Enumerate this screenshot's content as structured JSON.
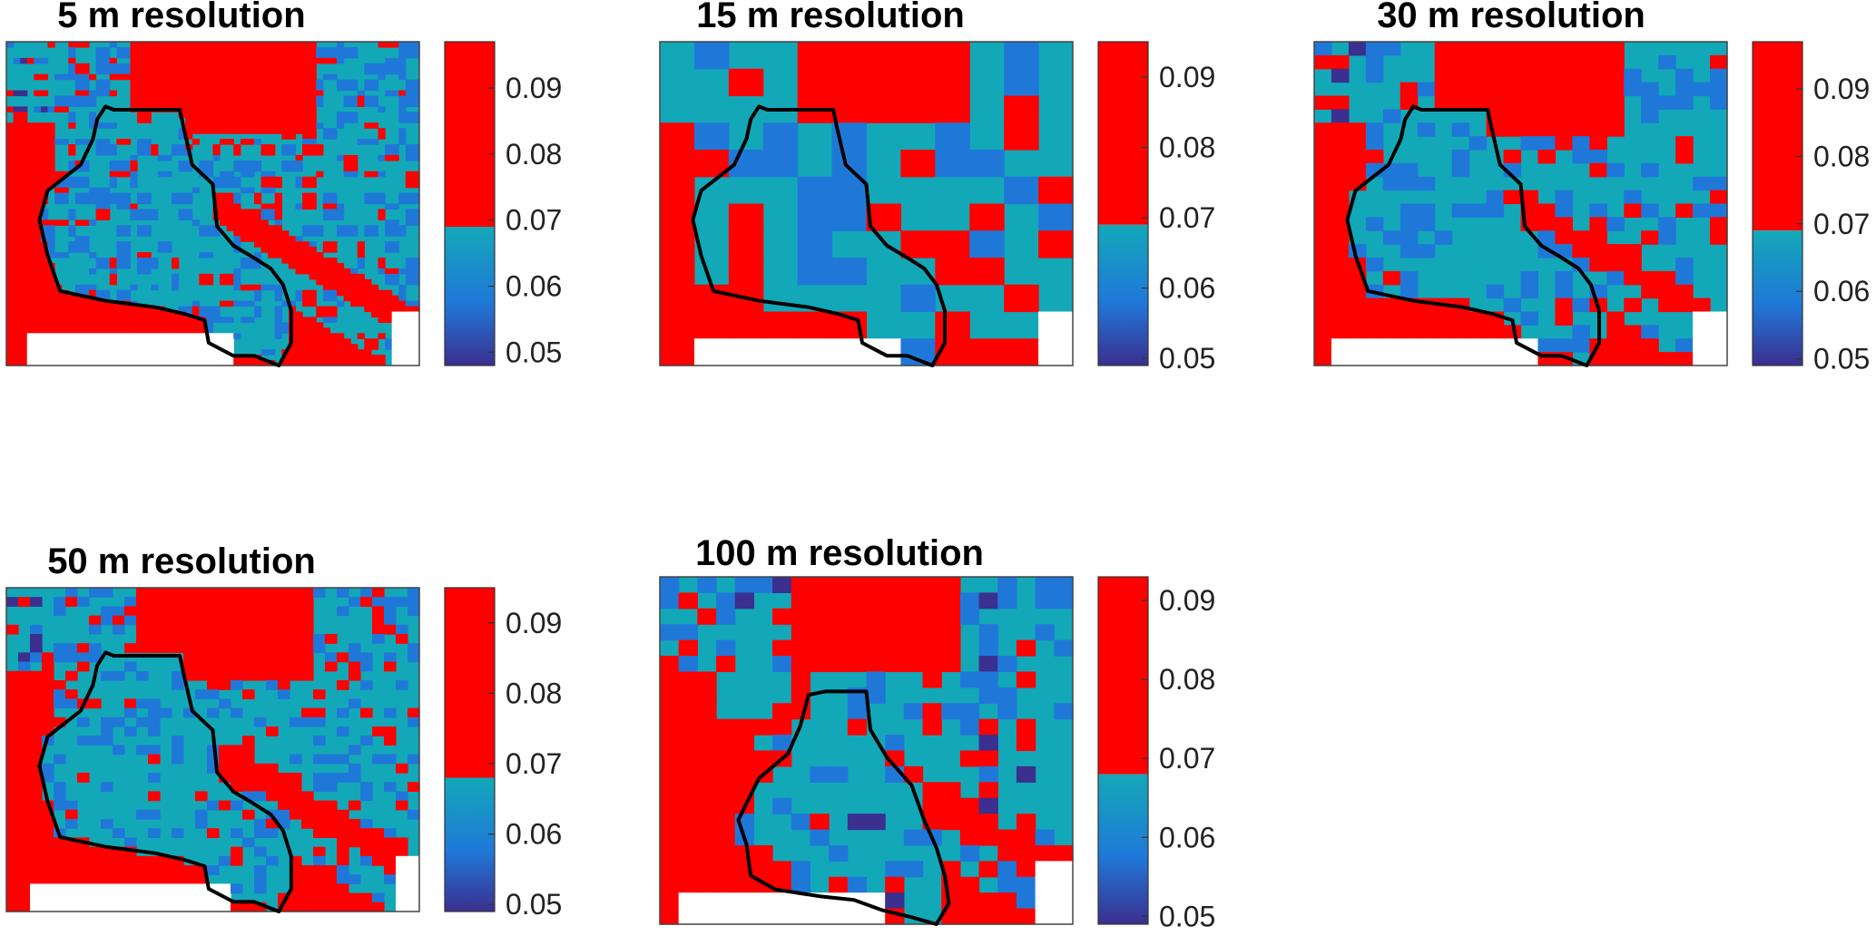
{
  "colors": {
    "high": "#ff0000",
    "mid": "#13a8b8",
    "blue": "#1f78d8",
    "low": "#3b2f8f",
    "outline": "#000000",
    "nodata": "#ffffff"
  },
  "chart_data": [
    {
      "type": "heatmap",
      "title": "5 m resolution",
      "colorbar": {
        "ticks": [
          "0.05",
          "0.06",
          "0.07",
          "0.08",
          "0.09"
        ],
        "range": [
          0.048,
          0.097
        ],
        "threshold": 0.069
      }
    },
    {
      "type": "heatmap",
      "title": "15 m resolution",
      "colorbar": {
        "ticks": [
          "0.05",
          "0.06",
          "0.07",
          "0.08",
          "0.09"
        ],
        "range": [
          0.049,
          0.095
        ],
        "threshold": 0.069
      }
    },
    {
      "type": "heatmap",
      "title": "30 m resolution",
      "colorbar": {
        "ticks": [
          "0.05",
          "0.06",
          "0.07",
          "0.08",
          "0.09"
        ],
        "range": [
          0.049,
          0.097
        ],
        "threshold": 0.069
      }
    },
    {
      "type": "heatmap",
      "title": "50 m resolution",
      "colorbar": {
        "ticks": [
          "0.05",
          "0.06",
          "0.07",
          "0.08",
          "0.09"
        ],
        "range": [
          0.049,
          0.095
        ],
        "threshold": 0.068
      }
    },
    {
      "type": "heatmap",
      "title": "100 m resolution",
      "colorbar": {
        "ticks": [
          "0.05",
          "0.06",
          "0.07",
          "0.08",
          "0.09"
        ],
        "range": [
          0.049,
          0.093
        ],
        "threshold": 0.068
      }
    }
  ]
}
